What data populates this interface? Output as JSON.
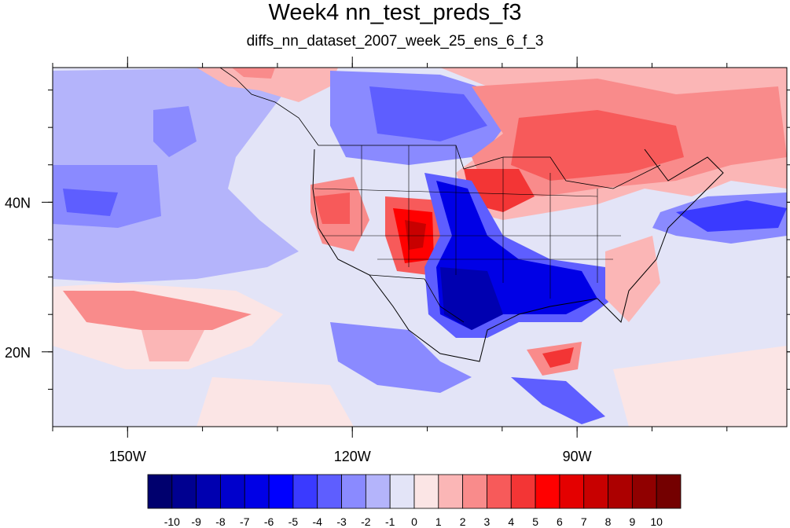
{
  "title": "Week4 nn_test_preds_f3",
  "subtitle": "diffs_nn_dataset_2007_week_25_ens_6_f_3",
  "map": {
    "lon_range": [
      -160,
      -62
    ],
    "lat_range": [
      10,
      58
    ],
    "lon_ticks": [
      {
        "value": -150,
        "label": "150W"
      },
      {
        "value": -120,
        "label": "120W"
      },
      {
        "value": -90,
        "label": "90W"
      }
    ],
    "lat_ticks": [
      {
        "value": 40,
        "label": "40N"
      },
      {
        "value": 20,
        "label": "20N"
      }
    ]
  },
  "colorbar": {
    "labels": [
      "-10",
      "-9",
      "-8",
      "-7",
      "-6",
      "-5",
      "-4",
      "-3",
      "-2",
      "-1",
      "0",
      "1",
      "2",
      "3",
      "4",
      "5",
      "6",
      "7",
      "8",
      "9",
      "10"
    ],
    "colors": [
      "#00006e",
      "#000090",
      "#0000b0",
      "#0000cc",
      "#0000e6",
      "#0000ff",
      "#3a3aff",
      "#5e5eff",
      "#8a8aff",
      "#b4b4fb",
      "#e3e4f7",
      "#fbe5e5",
      "#fbb6b6",
      "#f98b8b",
      "#f75a5a",
      "#f33535",
      "#ff0000",
      "#e40000",
      "#c80000",
      "#ac0000",
      "#900000",
      "#740000"
    ]
  }
}
